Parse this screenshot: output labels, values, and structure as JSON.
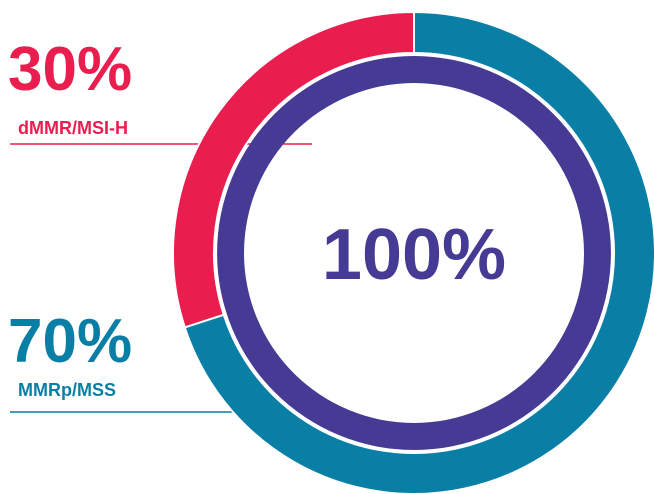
{
  "chart_data": {
    "type": "donut",
    "categories": [
      "dMMR/MSI-H",
      "MMRp/MSS"
    ],
    "values": [
      30,
      70
    ],
    "value_labels": [
      "30%",
      "70%"
    ],
    "colors": [
      "#e91e4f",
      "#0a7fa6"
    ],
    "inner": {
      "values": [
        100
      ],
      "value_labels": [
        "100%"
      ],
      "color": "#453a94"
    }
  }
}
